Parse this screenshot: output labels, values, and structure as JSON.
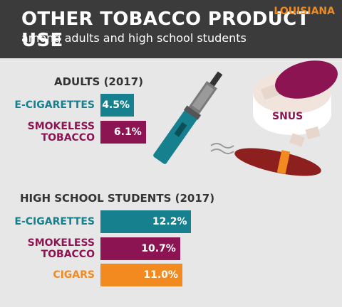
{
  "header": {
    "title": "OTHER TOBACCO PRODUCT USE",
    "subtitle": "among adults and high school students",
    "state": "LOUISIANA"
  },
  "illustration_label": "SNUS",
  "chart_data": [
    {
      "type": "bar",
      "title": "ADULTS (2017)",
      "categories": [
        "E-CIGARETTES",
        "SMOKELESS TOBACCO"
      ],
      "values": [
        4.5,
        6.1
      ],
      "value_labels": [
        "4.5%",
        "6.1%"
      ],
      "colors": [
        "#17808f",
        "#8d1452"
      ]
    },
    {
      "type": "bar",
      "title": "HIGH SCHOOL STUDENTS (2017)",
      "categories": [
        "E-CIGARETTES",
        "SMOKELESS TOBACCO",
        "CIGARS"
      ],
      "values": [
        12.2,
        10.7,
        11.0
      ],
      "value_labels": [
        "12.2%",
        "10.7%",
        "11.0%"
      ],
      "colors": [
        "#17808f",
        "#8d1452",
        "#f28a1f"
      ]
    }
  ]
}
